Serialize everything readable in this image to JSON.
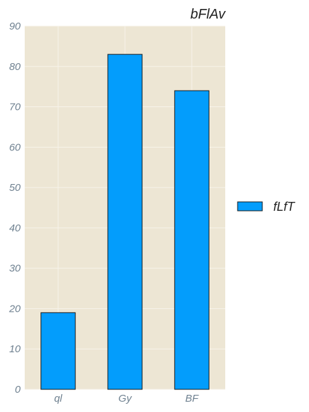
{
  "chart_data": {
    "type": "bar",
    "title": "bFlAv",
    "categories": [
      "ql",
      "Gy",
      "BF"
    ],
    "series": [
      {
        "name": "fLfT",
        "values": [
          19,
          83,
          74
        ]
      }
    ],
    "ylim": [
      0,
      90
    ],
    "yticks": [
      0,
      10,
      20,
      30,
      40,
      50,
      60,
      70,
      80,
      90
    ],
    "grid": true,
    "legend_position": "right",
    "colors": {
      "bar": "#039dfc",
      "bar_edge": "#1a1a1a",
      "plot_background": "#ede6d4",
      "grid": "#f7f3ea"
    }
  }
}
